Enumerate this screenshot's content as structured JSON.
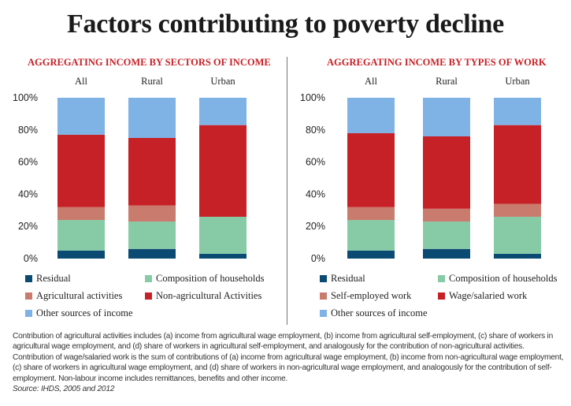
{
  "title": "Factors contributing to poverty decline",
  "colors": {
    "residual": "#0b4a72",
    "composition": "#86cba6",
    "third": "#c97b6d",
    "fourth": "#c62127",
    "other": "#7fb2e5",
    "subtitle": "#c62127"
  },
  "chart_data": [
    {
      "type": "bar",
      "stacked": true,
      "title": "AGGREGATING INCOME BY SECTORS OF INCOME",
      "categories": [
        "All",
        "Rural",
        "Urban"
      ],
      "ylim": [
        0,
        100
      ],
      "yticks": [
        "0%",
        "20%",
        "40%",
        "60%",
        "80%",
        "100%"
      ],
      "series": [
        {
          "name": "Residual",
          "color": "#0b4a72",
          "values": [
            5,
            6,
            3
          ]
        },
        {
          "name": "Composition of households",
          "color": "#86cba6",
          "values": [
            19,
            17,
            23
          ]
        },
        {
          "name": "Agricultural activities",
          "color": "#c97b6d",
          "values": [
            8,
            10,
            0
          ]
        },
        {
          "name": "Non-agricultural Activities",
          "color": "#c62127",
          "values": [
            45,
            42,
            57
          ]
        },
        {
          "name": "Other sources of income",
          "color": "#7fb2e5",
          "values": [
            23,
            25,
            17
          ]
        }
      ]
    },
    {
      "type": "bar",
      "stacked": true,
      "title": "AGGREGATING INCOME BY TYPES OF WORK",
      "categories": [
        "All",
        "Rural",
        "Urban"
      ],
      "ylim": [
        0,
        100
      ],
      "yticks": [
        "0%",
        "20%",
        "40%",
        "60%",
        "80%",
        "100%"
      ],
      "series": [
        {
          "name": "Residual",
          "color": "#0b4a72",
          "values": [
            5,
            6,
            3
          ]
        },
        {
          "name": "Composition of households",
          "color": "#86cba6",
          "values": [
            19,
            17,
            23
          ]
        },
        {
          "name": "Self-employed work",
          "color": "#c97b6d",
          "values": [
            8,
            8,
            8
          ]
        },
        {
          "name": "Wage/salaried work",
          "color": "#c62127",
          "values": [
            46,
            45,
            49
          ]
        },
        {
          "name": "Other sources of income",
          "color": "#7fb2e5",
          "values": [
            22,
            24,
            17
          ]
        }
      ]
    }
  ],
  "legends": [
    [
      "Residual",
      "Composition of households",
      "Agricultural activities",
      "Non-agricultural Activities",
      "Other sources of income"
    ],
    [
      "Residual",
      "Composition of households",
      "Self-employed work",
      "Wage/salaried work",
      "Other sources of income"
    ]
  ],
  "footnote": "Contribution of agricultural activities includes (a) income from agricultural wage employment, (b) income from agricultural self-employment, (c) share of workers in agricultural wage employment, and (d) share of workers in agricultural self-employment, and analogously for the contribution of non-agricultural activities. Contribution of wage/salaried work is the sum of contributions of (a) income from agricultural wage employment, (b) income from non-agricultural wage employment, (c) share of workers in agricultural wage employment, and (d) share of workers in non-agricultural wage employment, and analogously for the contribution of self-employment. Non-labour income includes remittances, benefits and other income.",
  "source": "Source: IHDS, 2005 and 2012"
}
